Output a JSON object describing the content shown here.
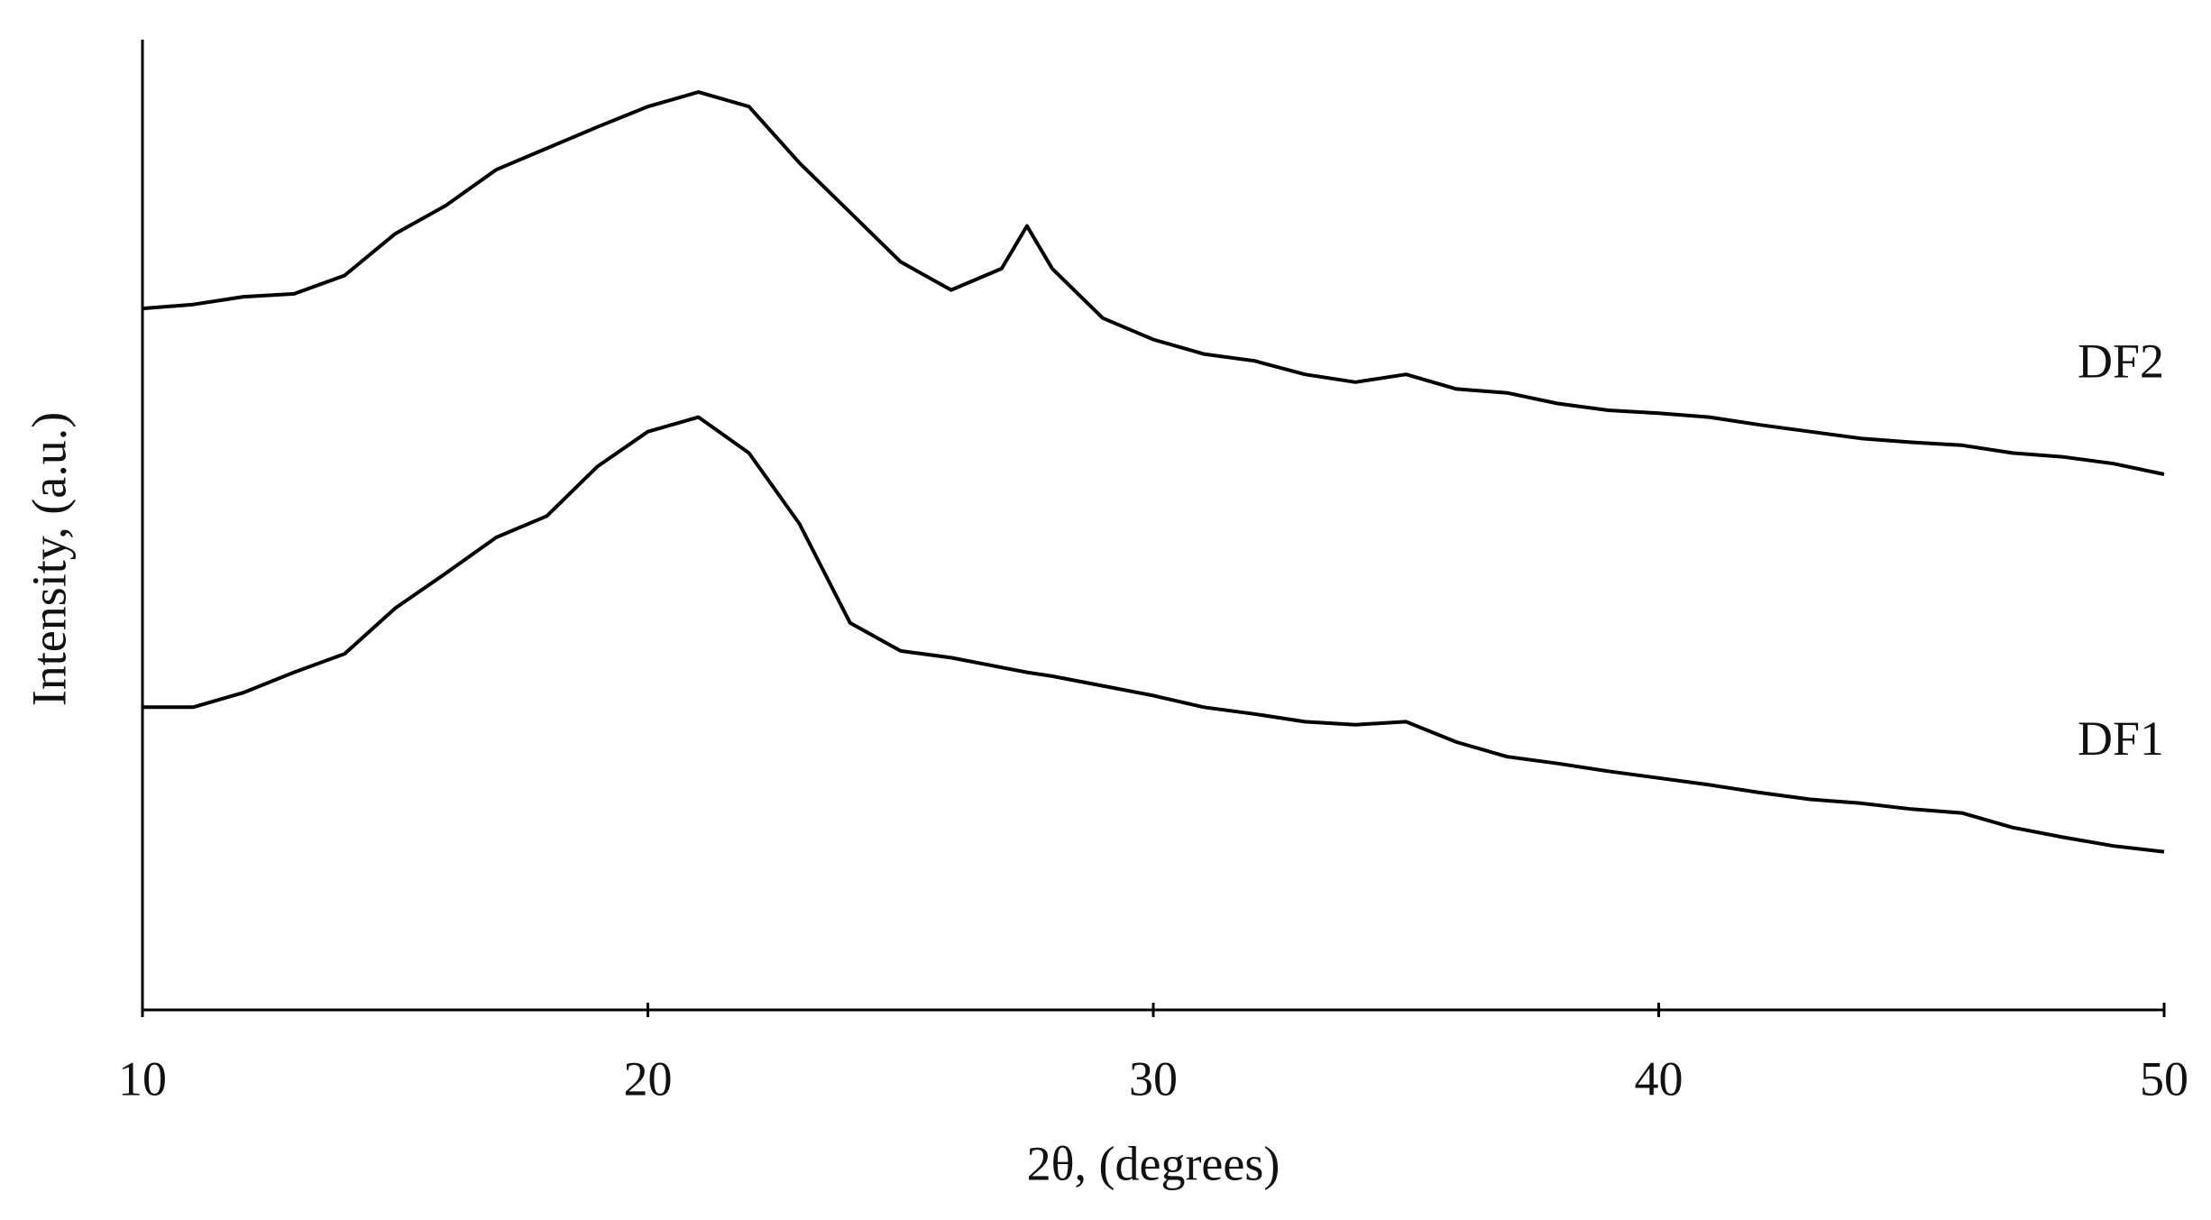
{
  "chart_data": {
    "type": "line",
    "x_label": "2θ, (degrees)",
    "y_label": "Intensity, (a.u.)",
    "x": [
      10,
      11,
      12,
      13,
      14,
      15,
      16,
      17,
      18,
      19,
      20,
      21,
      22,
      23,
      24,
      25,
      26,
      27,
      27.5,
      28,
      29,
      30,
      31,
      32,
      33,
      34,
      35,
      36,
      37,
      38,
      39,
      40,
      41,
      42,
      43,
      44,
      45,
      46,
      47,
      48,
      49,
      50
    ],
    "series": [
      {
        "name": "DF2",
        "color": "#000000",
        "values": [
          72.3,
          72.7,
          73.5,
          73.8,
          75.7,
          80.0,
          82.9,
          86.6,
          88.8,
          91.0,
          93.1,
          94.6,
          93.1,
          87.3,
          82.2,
          77.1,
          74.2,
          76.4,
          80.8,
          76.4,
          71.3,
          69.1,
          67.6,
          66.9,
          65.5,
          64.7,
          65.5,
          64.0,
          63.6,
          62.5,
          61.8,
          61.5,
          61.1,
          60.3,
          59.6,
          58.9,
          58.5,
          58.2,
          57.4,
          57.0,
          56.3,
          55.2
        ]
      },
      {
        "name": "DF1",
        "color": "#000000",
        "values": [
          31.2,
          31.2,
          32.7,
          34.8,
          36.7,
          41.4,
          45.0,
          48.7,
          50.9,
          56.0,
          59.6,
          61.1,
          57.4,
          50.1,
          39.9,
          37.0,
          36.3,
          35.3,
          34.8,
          34.4,
          33.4,
          32.4,
          31.2,
          30.5,
          29.7,
          29.4,
          29.7,
          27.6,
          26.1,
          25.4,
          24.6,
          23.9,
          23.2,
          22.4,
          21.7,
          21.3,
          20.7,
          20.3,
          18.8,
          17.8,
          16.9,
          16.3
        ]
      }
    ],
    "xlim": [
      10,
      50
    ],
    "xticks": [
      10,
      20,
      30,
      40,
      50
    ],
    "ylim": [
      0,
      100
    ]
  }
}
